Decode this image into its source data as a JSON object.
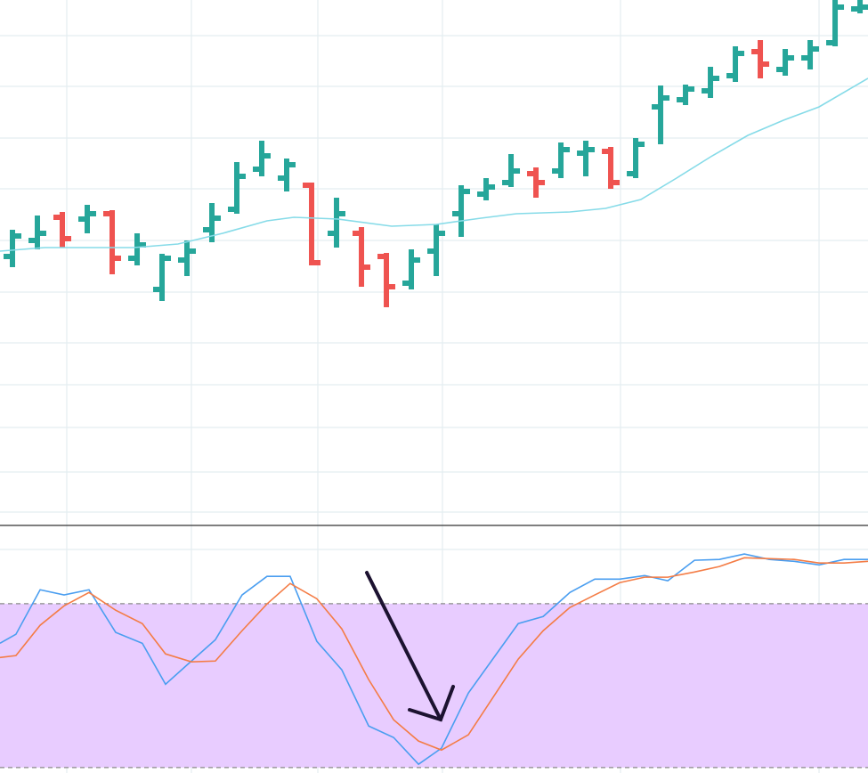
{
  "chart_data": [
    {
      "type": "ohlc",
      "x": [
        0,
        1,
        2,
        3,
        4,
        5,
        6,
        7,
        8,
        9,
        10,
        11,
        12,
        13,
        14,
        15,
        16,
        17,
        18,
        19,
        20,
        21,
        22,
        23,
        24,
        25,
        26,
        27,
        28,
        29,
        30,
        31,
        32,
        33,
        34
      ],
      "open": [
        300,
        318,
        344,
        342,
        348,
        298,
        263,
        296,
        330,
        353,
        398,
        388,
        380,
        326,
        326,
        300,
        270,
        306,
        348,
        370,
        383,
        393,
        396,
        416,
        418,
        393,
        468,
        476,
        486,
        503,
        530,
        510,
        523,
        540,
        578
      ],
      "high": [
        330,
        346,
        350,
        358,
        352,
        326,
        303,
        318,
        360,
        406,
        430,
        410,
        383,
        366,
        333,
        304,
        308,
        336,
        380,
        388,
        415,
        400,
        428,
        430,
        423,
        433,
        492,
        493,
        513,
        536,
        543,
        533,
        543,
        588,
        588
      ],
      "low": [
        288,
        308,
        310,
        326,
        280,
        290,
        250,
        278,
        316,
        348,
        390,
        373,
        290,
        310,
        266,
        243,
        263,
        278,
        322,
        363,
        378,
        366,
        388,
        390,
        376,
        388,
        426,
        470,
        478,
        496,
        500,
        503,
        510,
        536,
        573
      ],
      "close": [
        323,
        326,
        320,
        348,
        298,
        313,
        298,
        306,
        343,
        390,
        413,
        403,
        293,
        348,
        288,
        266,
        296,
        326,
        373,
        378,
        396,
        383,
        420,
        420,
        383,
        426,
        478,
        488,
        500,
        528,
        516,
        523,
        533,
        580,
        580
      ],
      "up_color": "#26a69a",
      "down_color": "#ef5350",
      "line": {
        "x": [
          -0.5,
          1.29,
          3.07,
          4.86,
          6.64,
          8.43,
          10.21,
          11.29,
          13.07,
          15.21,
          17,
          18.79,
          20.21,
          22.36,
          23.79,
          25.21,
          26.64,
          28.07,
          29.5,
          30.93,
          32.36,
          34.32
        ],
        "values": [
          306,
          310,
          310,
          310,
          314,
          326,
          340,
          344,
          342,
          334,
          336,
          343,
          348,
          350,
          354,
          364,
          388,
          413,
          436,
          453,
          468,
          500
        ],
        "color": "#86dbe8"
      },
      "xlim": [
        -0.5,
        34.32
      ],
      "ylim": [
        0,
        588
      ]
    },
    {
      "type": "line",
      "x": [
        -0.5,
        0.14,
        1.11,
        2.07,
        3.07,
        4.14,
        5.21,
        6.14,
        7.18,
        8.14,
        9.21,
        10.21,
        11.14,
        12.21,
        13.21,
        14.29,
        15.29,
        16.29,
        17.21,
        18.29,
        20.29,
        21.29,
        22.36,
        23.36,
        24.36,
        25.36,
        26.29,
        27.36,
        28.36,
        29.36,
        30.36,
        31.36,
        32.36,
        33.36,
        34.32
      ],
      "series": [
        {
          "color": "#4a9ef0",
          "values": [
            65.5,
            68.8,
            85.1,
            83.2,
            85.1,
            69.5,
            65.5,
            50.5,
            59.0,
            66.8,
            83.2,
            90.0,
            90.0,
            66.2,
            55.8,
            35.2,
            31.0,
            21.2,
            27.1,
            47.3,
            72.7,
            75.3,
            84.1,
            89.0,
            89.0,
            90.3,
            88.4,
            95.9,
            96.2,
            98.2,
            96.2,
            95.5,
            94.2,
            96.2,
            96.2
          ]
        },
        {
          "color": "#f47c45",
          "values": [
            60.3,
            61.0,
            72.1,
            79.2,
            84.1,
            77.6,
            72.7,
            61.6,
            58.7,
            59.0,
            70.1,
            79.9,
            87.4,
            81.8,
            70.8,
            52.2,
            37.5,
            29.7,
            26.4,
            32.0,
            59.7,
            70.1,
            78.6,
            83.2,
            87.7,
            89.7,
            89.7,
            91.6,
            93.6,
            96.8,
            96.5,
            96.2,
            94.9,
            94.9,
            95.5
          ]
        }
      ],
      "bands": [
        20,
        80
      ],
      "band_color": "#e8ccff",
      "xlim": [
        -0.5,
        34.32
      ],
      "ylim": [
        18,
        108
      ]
    }
  ]
}
